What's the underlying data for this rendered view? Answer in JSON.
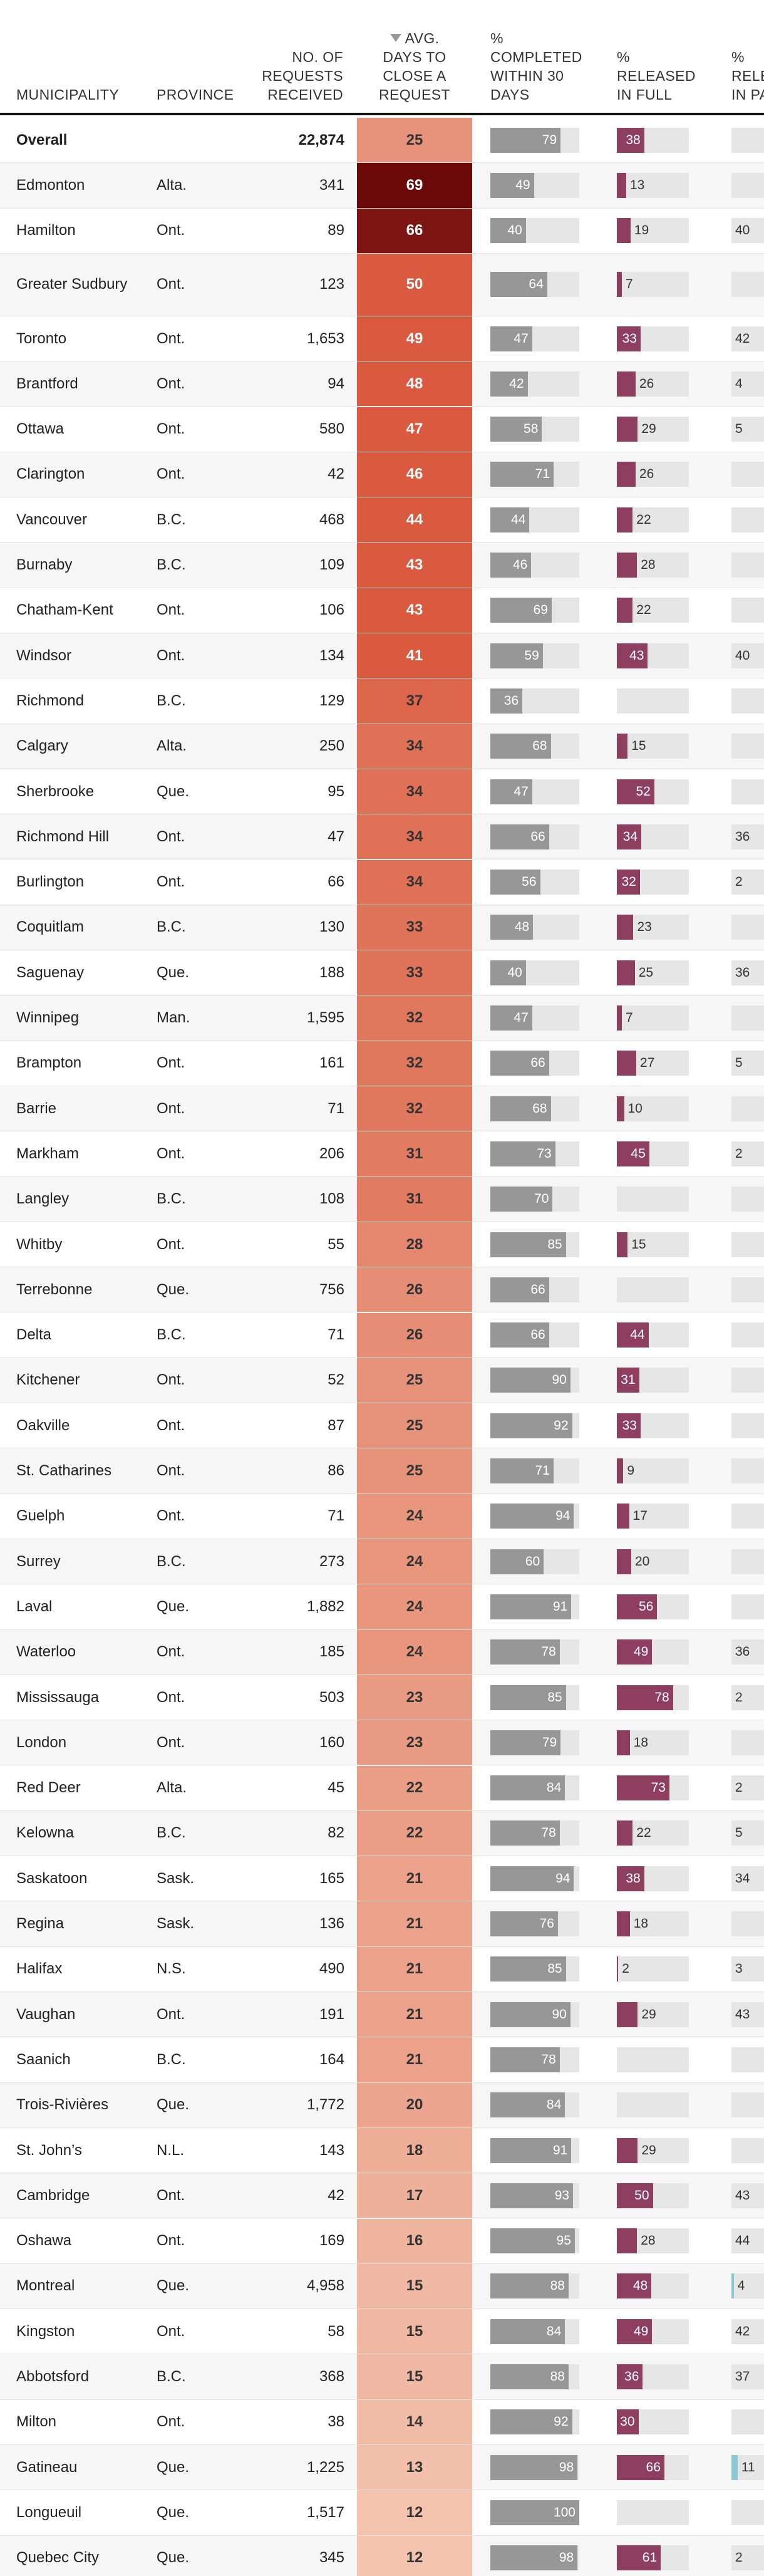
{
  "chart_data": {
    "type": "table",
    "sorted_by": "avg_days",
    "columns": {
      "municipality": "MUNICIPALITY",
      "province": "PROVINCE",
      "requests": [
        "NO. OF",
        "REQUESTS",
        "RECEIVED"
      ],
      "avg_days": [
        "AVG.",
        "DAYS TO",
        "CLOSE A",
        "REQUEST"
      ],
      "completed": [
        "%",
        "COMPLETED",
        "WITHIN 30",
        "DAYS"
      ],
      "released_full": [
        "%",
        "RELEASED",
        "IN FULL"
      ],
      "released_part": [
        "%",
        "RELEASED",
        "IN PART"
      ]
    },
    "colors": {
      "days_light": "#f3c3ae",
      "days_mid": "#d95a3e",
      "days_dark": "#6b0808",
      "completed_bar": "#979797",
      "full_bar": "#8e3e5f",
      "part_bar": "#8cc8d4",
      "bar_track": "#e6e6e6"
    },
    "rows": [
      {
        "municipality": "Overall",
        "province": "",
        "requests": "22,874",
        "avg_days": 25,
        "completed": 79,
        "released_full": 38,
        "released_part": null,
        "part_label": ""
      },
      {
        "municipality": "Edmonton",
        "province": "Alta.",
        "requests": "341",
        "avg_days": 69,
        "completed": 49,
        "released_full": 13,
        "released_part": null,
        "part_label": ""
      },
      {
        "municipality": "Hamilton",
        "province": "Ont.",
        "requests": "89",
        "avg_days": 66,
        "completed": 40,
        "released_full": 19,
        "released_part": null,
        "part_label": "40"
      },
      {
        "municipality": "Greater Sudbury",
        "province": "Ont.",
        "requests": "123",
        "avg_days": 50,
        "completed": 64,
        "released_full": 7,
        "released_part": null,
        "part_label": ""
      },
      {
        "municipality": "Toronto",
        "province": "Ont.",
        "requests": "1,653",
        "avg_days": 49,
        "completed": 47,
        "released_full": 33,
        "released_part": null,
        "part_label": "42"
      },
      {
        "municipality": "Brantford",
        "province": "Ont.",
        "requests": "94",
        "avg_days": 48,
        "completed": 42,
        "released_full": 26,
        "released_part": null,
        "part_label": "4"
      },
      {
        "municipality": "Ottawa",
        "province": "Ont.",
        "requests": "580",
        "avg_days": 47,
        "completed": 58,
        "released_full": 29,
        "released_part": null,
        "part_label": "5"
      },
      {
        "municipality": "Clarington",
        "province": "Ont.",
        "requests": "42",
        "avg_days": 46,
        "completed": 71,
        "released_full": 26,
        "released_part": null,
        "part_label": ""
      },
      {
        "municipality": "Vancouver",
        "province": "B.C.",
        "requests": "468",
        "avg_days": 44,
        "completed": 44,
        "released_full": 22,
        "released_part": null,
        "part_label": ""
      },
      {
        "municipality": "Burnaby",
        "province": "B.C.",
        "requests": "109",
        "avg_days": 43,
        "completed": 46,
        "released_full": 28,
        "released_part": null,
        "part_label": ""
      },
      {
        "municipality": "Chatham-Kent",
        "province": "Ont.",
        "requests": "106",
        "avg_days": 43,
        "completed": 69,
        "released_full": 22,
        "released_part": null,
        "part_label": ""
      },
      {
        "municipality": "Windsor",
        "province": "Ont.",
        "requests": "134",
        "avg_days": 41,
        "completed": 59,
        "released_full": 43,
        "released_part": null,
        "part_label": "40"
      },
      {
        "municipality": "Richmond",
        "province": "B.C.",
        "requests": "129",
        "avg_days": 37,
        "completed": 36,
        "released_full": null,
        "released_part": null,
        "part_label": ""
      },
      {
        "municipality": "Calgary",
        "province": "Alta.",
        "requests": "250",
        "avg_days": 34,
        "completed": 68,
        "released_full": 15,
        "released_part": null,
        "part_label": ""
      },
      {
        "municipality": "Sherbrooke",
        "province": "Que.",
        "requests": "95",
        "avg_days": 34,
        "completed": 47,
        "released_full": 52,
        "released_part": null,
        "part_label": ""
      },
      {
        "municipality": "Richmond Hill",
        "province": "Ont.",
        "requests": "47",
        "avg_days": 34,
        "completed": 66,
        "released_full": 34,
        "released_part": null,
        "part_label": "36"
      },
      {
        "municipality": "Burlington",
        "province": "Ont.",
        "requests": "66",
        "avg_days": 34,
        "completed": 56,
        "released_full": 32,
        "released_part": null,
        "part_label": "2"
      },
      {
        "municipality": "Coquitlam",
        "province": "B.C.",
        "requests": "130",
        "avg_days": 33,
        "completed": 48,
        "released_full": 23,
        "released_part": null,
        "part_label": ""
      },
      {
        "municipality": "Saguenay",
        "province": "Que.",
        "requests": "188",
        "avg_days": 33,
        "completed": 40,
        "released_full": 25,
        "released_part": null,
        "part_label": "36"
      },
      {
        "municipality": "Winnipeg",
        "province": "Man.",
        "requests": "1,595",
        "avg_days": 32,
        "completed": 47,
        "released_full": 7,
        "released_part": null,
        "part_label": ""
      },
      {
        "municipality": "Brampton",
        "province": "Ont.",
        "requests": "161",
        "avg_days": 32,
        "completed": 66,
        "released_full": 27,
        "released_part": null,
        "part_label": "5"
      },
      {
        "municipality": "Barrie",
        "province": "Ont.",
        "requests": "71",
        "avg_days": 32,
        "completed": 68,
        "released_full": 10,
        "released_part": null,
        "part_label": ""
      },
      {
        "municipality": "Markham",
        "province": "Ont.",
        "requests": "206",
        "avg_days": 31,
        "completed": 73,
        "released_full": 45,
        "released_part": null,
        "part_label": "2"
      },
      {
        "municipality": "Langley",
        "province": "B.C.",
        "requests": "108",
        "avg_days": 31,
        "completed": 70,
        "released_full": null,
        "released_part": null,
        "part_label": ""
      },
      {
        "municipality": "Whitby",
        "province": "Ont.",
        "requests": "55",
        "avg_days": 28,
        "completed": 85,
        "released_full": 15,
        "released_part": null,
        "part_label": ""
      },
      {
        "municipality": "Terrebonne",
        "province": "Que.",
        "requests": "756",
        "avg_days": 26,
        "completed": 66,
        "released_full": null,
        "released_part": null,
        "part_label": ""
      },
      {
        "municipality": "Delta",
        "province": "B.C.",
        "requests": "71",
        "avg_days": 26,
        "completed": 66,
        "released_full": 44,
        "released_part": null,
        "part_label": ""
      },
      {
        "municipality": "Kitchener",
        "province": "Ont.",
        "requests": "52",
        "avg_days": 25,
        "completed": 90,
        "released_full": 31,
        "released_part": null,
        "part_label": ""
      },
      {
        "municipality": "Oakville",
        "province": "Ont.",
        "requests": "87",
        "avg_days": 25,
        "completed": 92,
        "released_full": 33,
        "released_part": null,
        "part_label": ""
      },
      {
        "municipality": "St. Catharines",
        "province": "Ont.",
        "requests": "86",
        "avg_days": 25,
        "completed": 71,
        "released_full": 9,
        "released_part": null,
        "part_label": ""
      },
      {
        "municipality": "Guelph",
        "province": "Ont.",
        "requests": "71",
        "avg_days": 24,
        "completed": 94,
        "released_full": 17,
        "released_part": null,
        "part_label": ""
      },
      {
        "municipality": "Surrey",
        "province": "B.C.",
        "requests": "273",
        "avg_days": 24,
        "completed": 60,
        "released_full": 20,
        "released_part": null,
        "part_label": ""
      },
      {
        "municipality": "Laval",
        "province": "Que.",
        "requests": "1,882",
        "avg_days": 24,
        "completed": 91,
        "released_full": 56,
        "released_part": null,
        "part_label": ""
      },
      {
        "municipality": "Waterloo",
        "province": "Ont.",
        "requests": "185",
        "avg_days": 24,
        "completed": 78,
        "released_full": 49,
        "released_part": null,
        "part_label": "36"
      },
      {
        "municipality": "Mississauga",
        "province": "Ont.",
        "requests": "503",
        "avg_days": 23,
        "completed": 85,
        "released_full": 78,
        "released_part": null,
        "part_label": "2"
      },
      {
        "municipality": "London",
        "province": "Ont.",
        "requests": "160",
        "avg_days": 23,
        "completed": 79,
        "released_full": 18,
        "released_part": null,
        "part_label": ""
      },
      {
        "municipality": "Red Deer",
        "province": "Alta.",
        "requests": "45",
        "avg_days": 22,
        "completed": 84,
        "released_full": 73,
        "released_part": null,
        "part_label": "2"
      },
      {
        "municipality": "Kelowna",
        "province": "B.C.",
        "requests": "82",
        "avg_days": 22,
        "completed": 78,
        "released_full": 22,
        "released_part": null,
        "part_label": "5"
      },
      {
        "municipality": "Saskatoon",
        "province": "Sask.",
        "requests": "165",
        "avg_days": 21,
        "completed": 94,
        "released_full": 38,
        "released_part": null,
        "part_label": "34"
      },
      {
        "municipality": "Regina",
        "province": "Sask.",
        "requests": "136",
        "avg_days": 21,
        "completed": 76,
        "released_full": 18,
        "released_part": null,
        "part_label": ""
      },
      {
        "municipality": "Halifax",
        "province": "N.S.",
        "requests": "490",
        "avg_days": 21,
        "completed": 85,
        "released_full": 2,
        "released_part": null,
        "part_label": "3"
      },
      {
        "municipality": "Vaughan",
        "province": "Ont.",
        "requests": "191",
        "avg_days": 21,
        "completed": 90,
        "released_full": 29,
        "released_part": null,
        "part_label": "43"
      },
      {
        "municipality": "Saanich",
        "province": "B.C.",
        "requests": "164",
        "avg_days": 21,
        "completed": 78,
        "released_full": null,
        "released_part": null,
        "part_label": ""
      },
      {
        "municipality": "Trois-Rivières",
        "province": "Que.",
        "requests": "1,772",
        "avg_days": 20,
        "completed": 84,
        "released_full": null,
        "released_part": null,
        "part_label": ""
      },
      {
        "municipality": "St. John’s",
        "province": "N.L.",
        "requests": "143",
        "avg_days": 18,
        "completed": 91,
        "released_full": 29,
        "released_part": null,
        "part_label": ""
      },
      {
        "municipality": "Cambridge",
        "province": "Ont.",
        "requests": "42",
        "avg_days": 17,
        "completed": 93,
        "released_full": 50,
        "released_part": null,
        "part_label": "43"
      },
      {
        "municipality": "Oshawa",
        "province": "Ont.",
        "requests": "169",
        "avg_days": 16,
        "completed": 95,
        "released_full": 28,
        "released_part": null,
        "part_label": "44"
      },
      {
        "municipality": "Montreal",
        "province": "Que.",
        "requests": "4,958",
        "avg_days": 15,
        "completed": 88,
        "released_full": 48,
        "released_part": 4,
        "part_label": "4"
      },
      {
        "municipality": "Kingston",
        "province": "Ont.",
        "requests": "58",
        "avg_days": 15,
        "completed": 84,
        "released_full": 49,
        "released_part": null,
        "part_label": "42"
      },
      {
        "municipality": "Abbotsford",
        "province": "B.C.",
        "requests": "368",
        "avg_days": 15,
        "completed": 88,
        "released_full": 36,
        "released_part": null,
        "part_label": "37"
      },
      {
        "municipality": "Milton",
        "province": "Ont.",
        "requests": "38",
        "avg_days": 14,
        "completed": 92,
        "released_full": 30,
        "released_part": null,
        "part_label": ""
      },
      {
        "municipality": "Gatineau",
        "province": "Que.",
        "requests": "1,225",
        "avg_days": 13,
        "completed": 98,
        "released_full": 66,
        "released_part": 11,
        "part_label": "11"
      },
      {
        "municipality": "Longueuil",
        "province": "Que.",
        "requests": "1,517",
        "avg_days": 12,
        "completed": 100,
        "released_full": null,
        "released_part": null,
        "part_label": ""
      },
      {
        "municipality": "Quebec City",
        "province": "Que.",
        "requests": "345",
        "avg_days": 12,
        "completed": 98,
        "released_full": 61,
        "released_part": null,
        "part_label": "2"
      }
    ]
  }
}
